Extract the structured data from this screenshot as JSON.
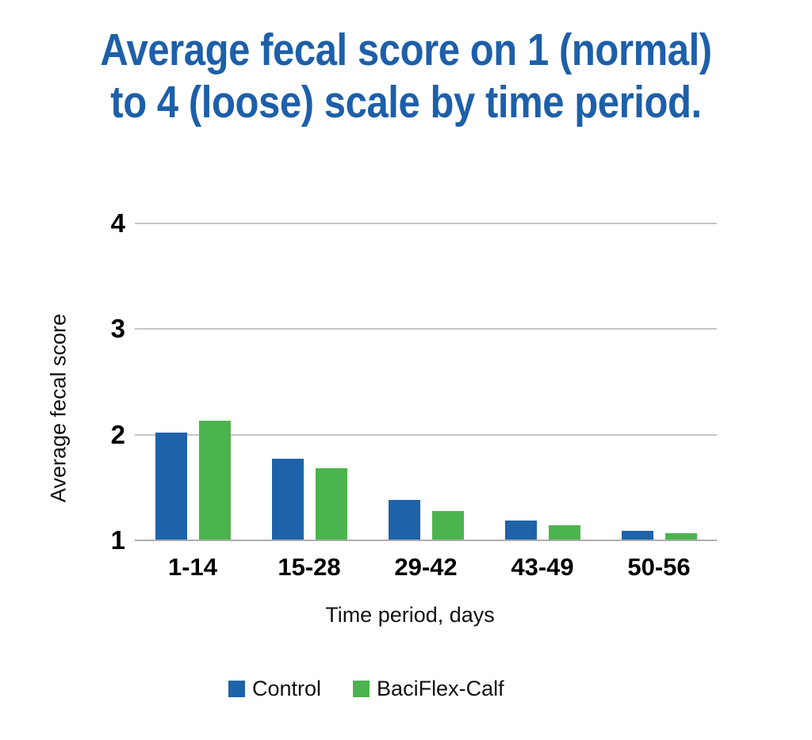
{
  "title": {
    "lines": [
      "Average fecal score on 1 (normal)",
      "to 4 (loose) scale by time period."
    ]
  },
  "colors": {
    "title_blue": "#1d5fa9",
    "control_blue": "#1e63a9",
    "baciflex_green": "#4bb44e",
    "gridline_gray": "#c7c7c7",
    "baseline_gray": "#aeaeae",
    "text_black": "#111111"
  },
  "chart_data": {
    "type": "bar",
    "title": "Average fecal score on 1 (normal) to 4 (loose) scale by time period.",
    "categories": [
      "1-14",
      "15-28",
      "29-42",
      "43-49",
      "50-56"
    ],
    "series": [
      {
        "name": "Control",
        "color": "#1e63a9",
        "values": [
          2.02,
          1.77,
          1.38,
          1.19,
          1.09
        ]
      },
      {
        "name": "BaciFlex-Calf",
        "color": "#4bb44e",
        "values": [
          2.13,
          1.68,
          1.28,
          1.14,
          1.07
        ]
      }
    ],
    "xlabel": "Time period, days",
    "ylabel": "Average fecal score",
    "yticks": [
      1,
      2,
      3,
      4
    ],
    "ylim": [
      1,
      4
    ],
    "grid": true,
    "legend_position": "bottom"
  }
}
